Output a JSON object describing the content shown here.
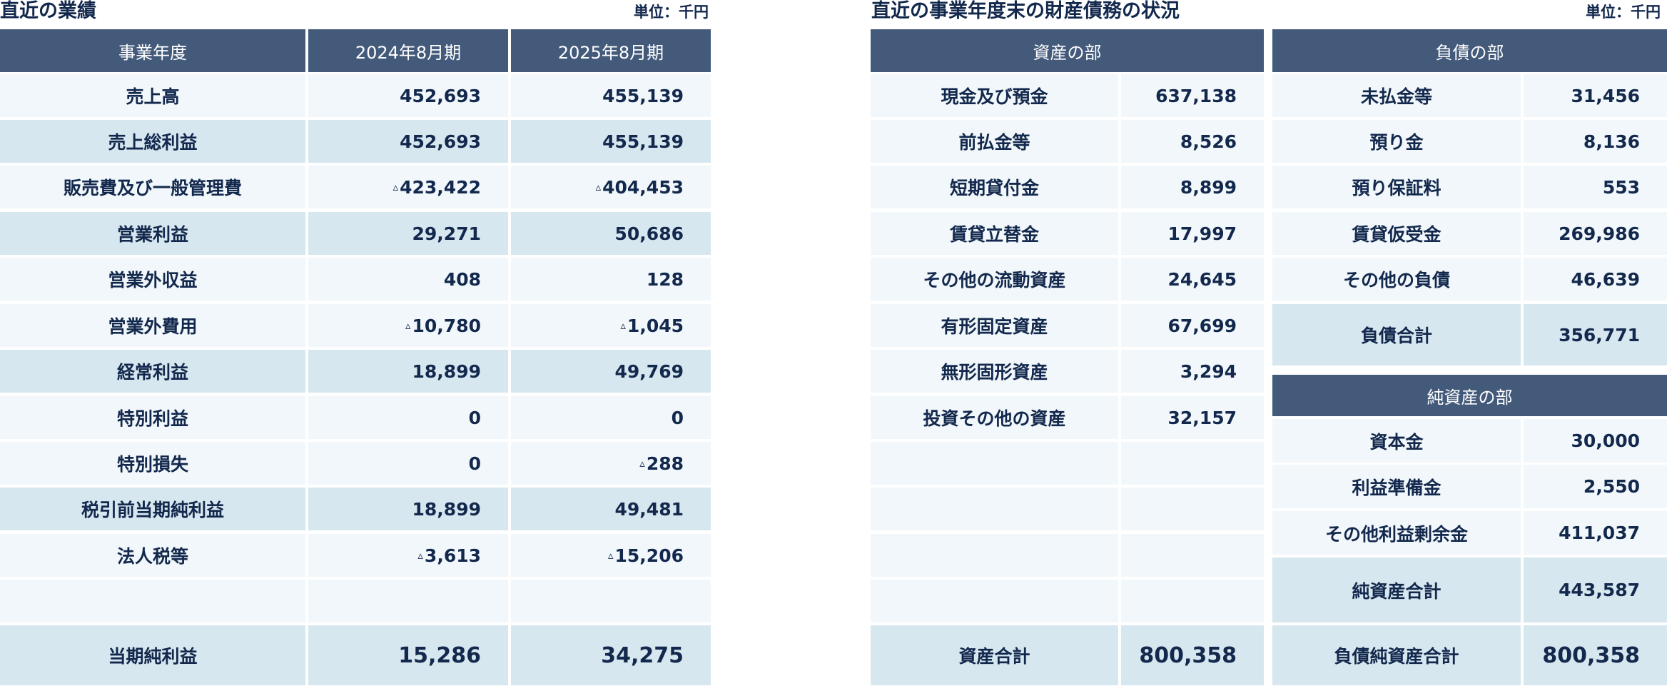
{
  "results": {
    "title": "直近の業績",
    "unit": "単位：千円",
    "headers": [
      "事業年度",
      "2024年8月期",
      "2025年8月期"
    ],
    "rows": [
      {
        "label": "売上高",
        "v2024": "452,693",
        "v2025": "455,139"
      },
      {
        "label": "売上総利益",
        "v2024": "452,693",
        "v2025": "455,139"
      },
      {
        "label": "販売費及び一般管理費",
        "v2024": "423,422",
        "v2025": "404,453",
        "neg2024": true,
        "neg2025": true
      },
      {
        "label": "営業利益",
        "v2024": "29,271",
        "v2025": "50,686"
      },
      {
        "label": "営業外収益",
        "v2024": "408",
        "v2025": "128"
      },
      {
        "label": "営業外費用",
        "v2024": "10,780",
        "v2025": "1,045",
        "neg2024": true,
        "neg2025": true
      },
      {
        "label": "経常利益",
        "v2024": "18,899",
        "v2025": "49,769"
      },
      {
        "label": "特別利益",
        "v2024": "0",
        "v2025": "0"
      },
      {
        "label": "特別損失",
        "v2024": "0",
        "v2025": "288",
        "neg2025": true
      },
      {
        "label": "税引前当期純利益",
        "v2024": "18,899",
        "v2025": "49,481"
      },
      {
        "label": "法人税等",
        "v2024": "3,613",
        "v2025": "15,206",
        "neg2024": true,
        "neg2025": true
      }
    ],
    "total": {
      "label": "当期純利益",
      "v2024": "15,286",
      "v2025": "34,275"
    },
    "negative_mark": "▵"
  },
  "balance": {
    "title": "直近の事業年度末の財産債務の状況",
    "unit": "単位：千円",
    "assets": {
      "header": "資産の部",
      "rows": [
        {
          "label": "現金及び預金",
          "value": "637,138"
        },
        {
          "label": "前払金等",
          "value": "8,526"
        },
        {
          "label": "短期貸付金",
          "value": "8,899"
        },
        {
          "label": "賃貸立替金",
          "value": "17,997"
        },
        {
          "label": "その他の流動資産",
          "value": "24,645"
        },
        {
          "label": "有形固定資産",
          "value": "67,699"
        },
        {
          "label": "無形固形資産",
          "value": "3,294"
        },
        {
          "label": "投資その他の資産",
          "value": "32,157"
        }
      ],
      "total": {
        "label": "資産合計",
        "value": "800,358"
      }
    },
    "liabilities": {
      "header": "負債の部",
      "rows": [
        {
          "label": "未払金等",
          "value": "31,456"
        },
        {
          "label": "預り金",
          "value": "8,136"
        },
        {
          "label": "預り保証料",
          "value": "553"
        },
        {
          "label": "賃貸仮受金",
          "value": "269,986"
        },
        {
          "label": "その他の負債",
          "value": "46,639"
        }
      ],
      "total": {
        "label": "負債合計",
        "value": "356,771"
      }
    },
    "net_assets": {
      "header": "純資産の部",
      "rows": [
        {
          "label": "資本金",
          "value": "30,000"
        },
        {
          "label": "利益準備金",
          "value": "2,550"
        },
        {
          "label": "その他利益剰余金",
          "value": "411,037"
        }
      ],
      "total": {
        "label": "純資産合計",
        "value": "443,587"
      }
    },
    "grand_total": {
      "label": "負債純資産合計",
      "value": "800,358"
    }
  }
}
